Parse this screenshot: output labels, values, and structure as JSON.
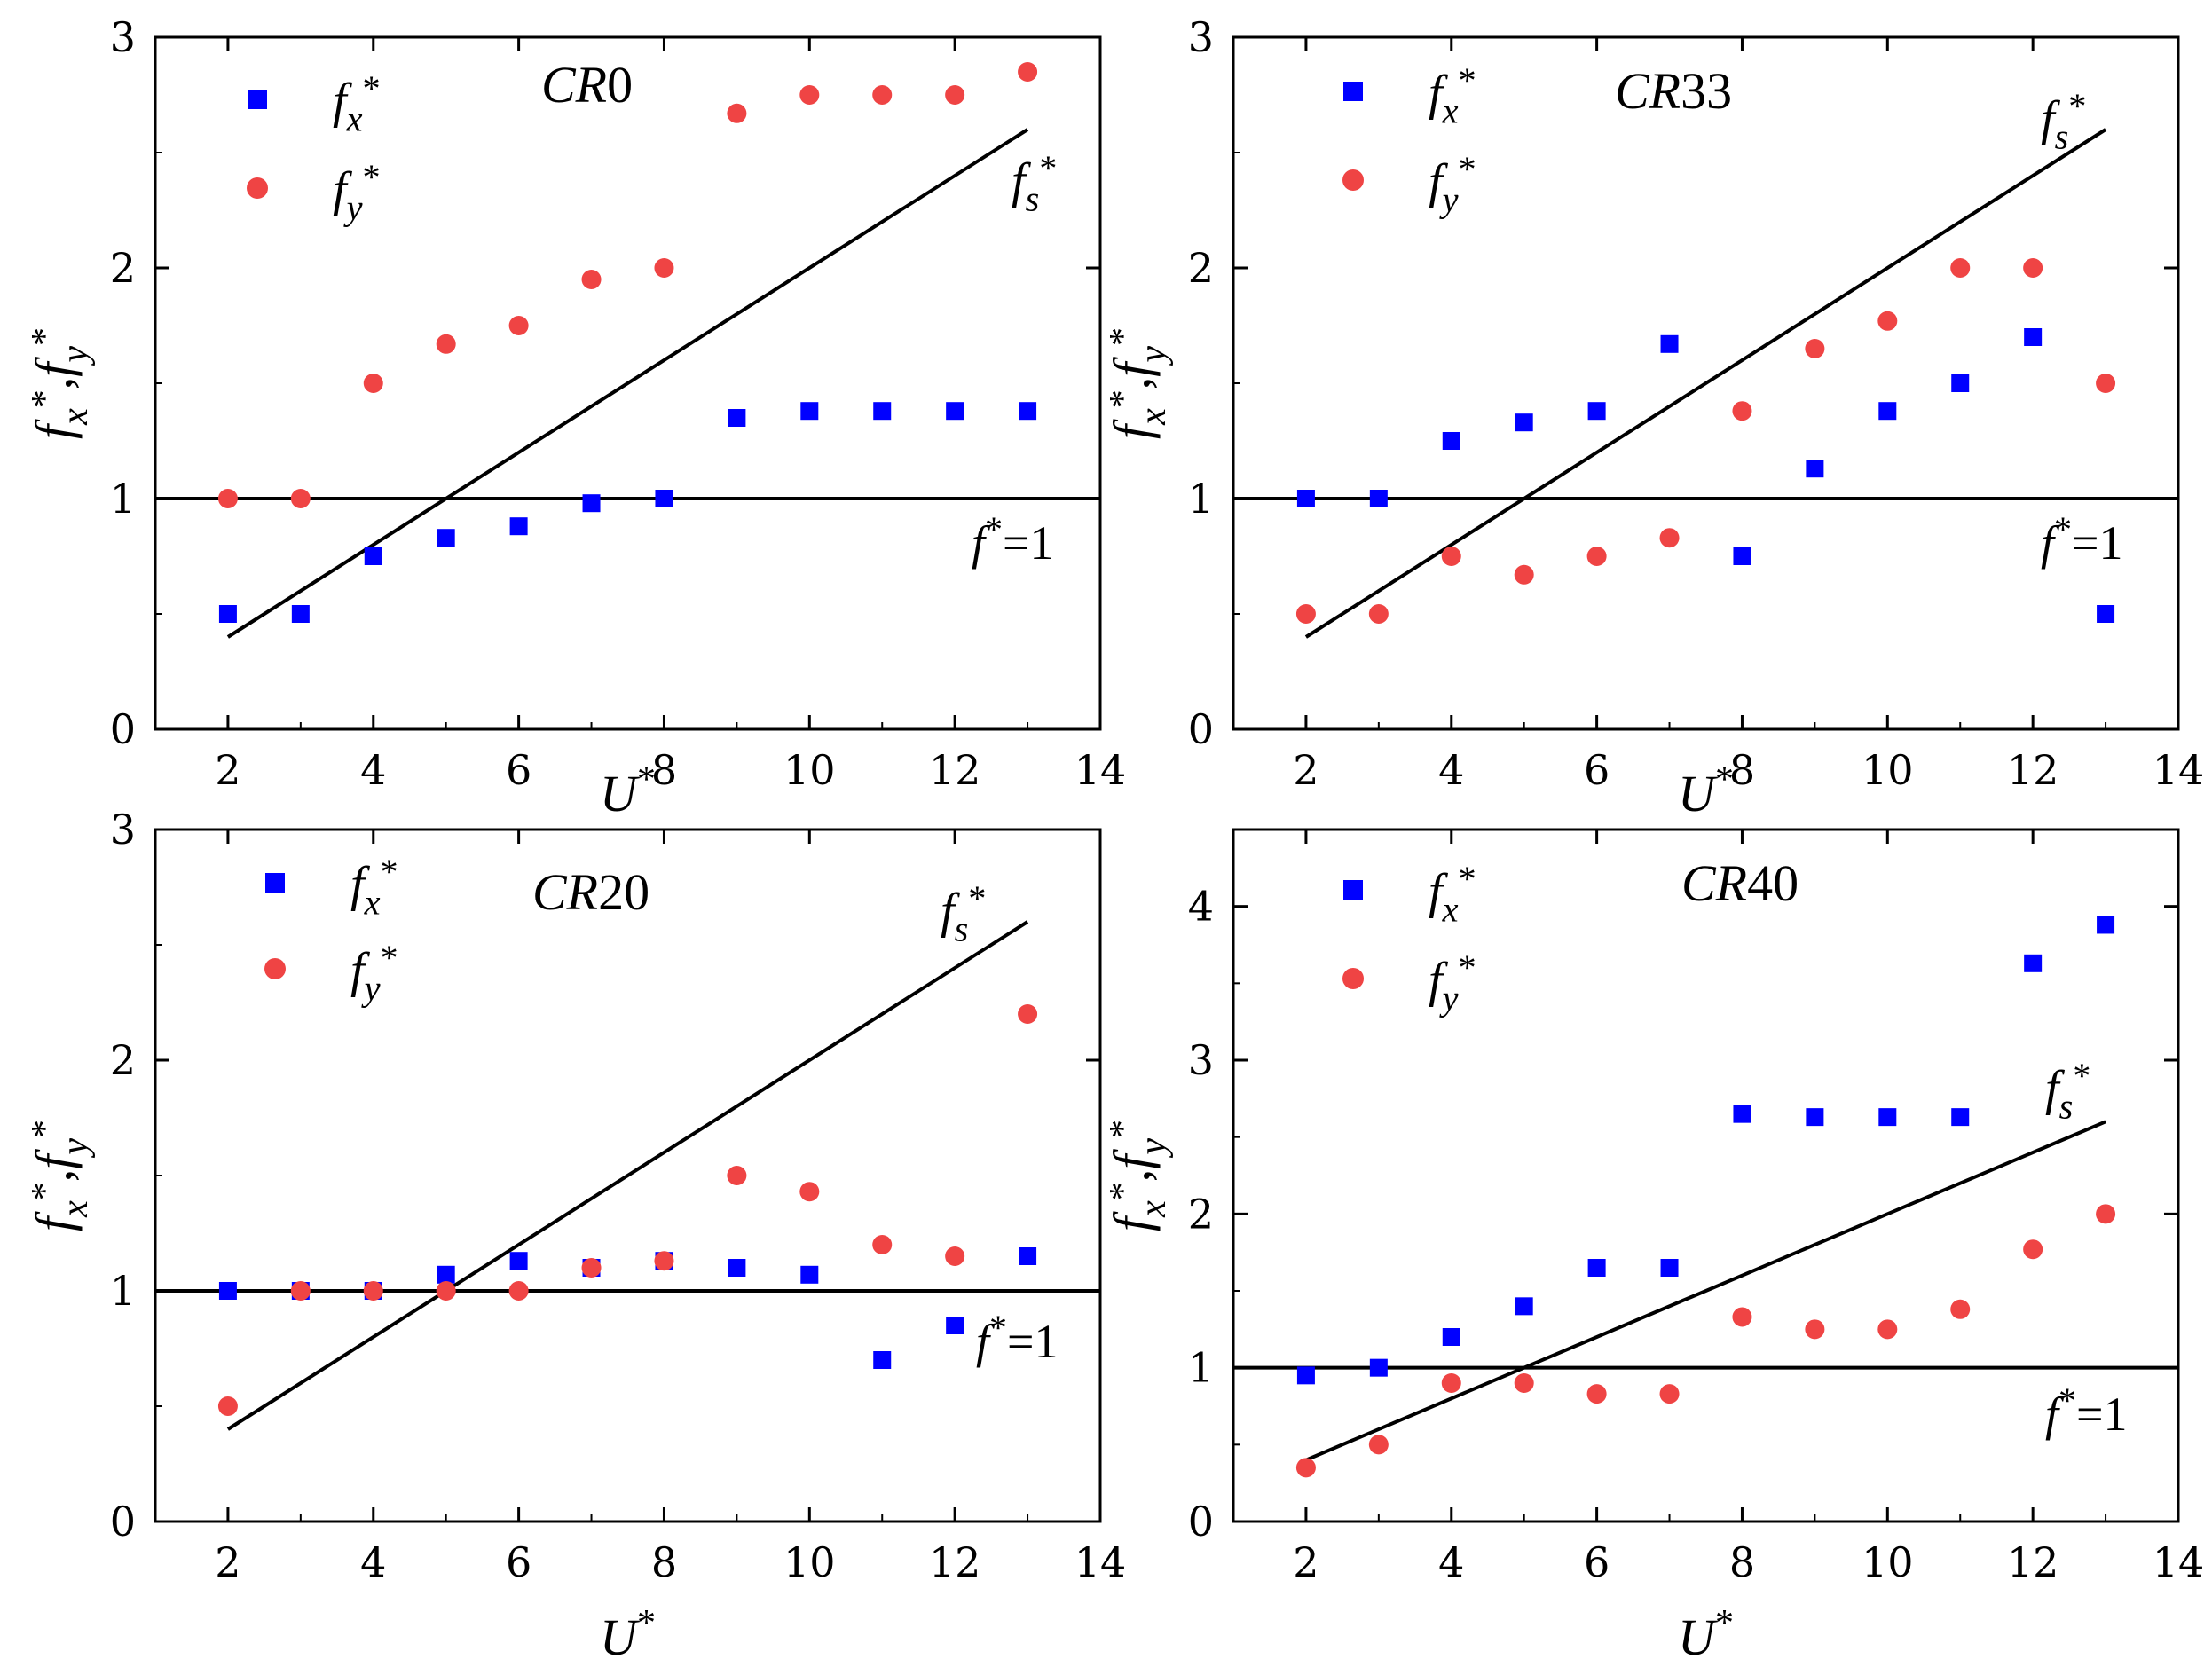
{
  "colors": {
    "fx": "#0000ff",
    "fy": "#ef4444",
    "line": "#000000",
    "axis": "#000000"
  },
  "chart_data": [
    {
      "type": "scatter",
      "title": "CR0",
      "xlabel": "U*",
      "ylabel": "fx*,fy*",
      "xlim": [
        1,
        14
      ],
      "ylim": [
        0,
        3
      ],
      "xticks": [
        2,
        4,
        6,
        8,
        10,
        12,
        14
      ],
      "yticks": [
        0,
        1,
        2,
        3
      ],
      "legend": [
        "fx*",
        "fy*"
      ],
      "series": [
        {
          "name": "fx*",
          "marker": "square",
          "x": [
            2,
            3,
            4,
            5,
            6,
            7,
            8,
            9,
            10,
            11,
            12,
            13
          ],
          "y": [
            0.5,
            0.5,
            0.75,
            0.83,
            0.88,
            0.98,
            1.0,
            1.35,
            1.38,
            1.38,
            1.38,
            1.38
          ]
        },
        {
          "name": "fy*",
          "marker": "circle",
          "x": [
            2,
            3,
            4,
            5,
            6,
            7,
            8,
            9,
            10,
            11,
            12,
            13
          ],
          "y": [
            1.0,
            1.0,
            1.5,
            1.67,
            1.75,
            1.95,
            2.0,
            2.67,
            2.75,
            2.75,
            2.75,
            2.85
          ]
        }
      ],
      "lines": [
        {
          "name": "fs*",
          "x": [
            2,
            13
          ],
          "y": [
            0.4,
            2.6
          ]
        },
        {
          "name": "f*=1",
          "x": [
            1,
            14
          ],
          "y": [
            1,
            1
          ]
        }
      ]
    },
    {
      "type": "scatter",
      "title": "CR33",
      "xlabel": "U*",
      "ylabel": "fx*,fy*",
      "xlim": [
        1,
        14
      ],
      "ylim": [
        0,
        3
      ],
      "xticks": [
        2,
        4,
        6,
        8,
        10,
        12,
        14
      ],
      "yticks": [
        0,
        1,
        2,
        3
      ],
      "legend": [
        "fx*",
        "fy*"
      ],
      "series": [
        {
          "name": "fx*",
          "marker": "square",
          "x": [
            2,
            3,
            4,
            5,
            6,
            7,
            8,
            9,
            10,
            11,
            12,
            13
          ],
          "y": [
            1.0,
            1.0,
            1.25,
            1.33,
            1.38,
            1.67,
            0.75,
            1.13,
            1.38,
            1.5,
            1.7,
            0.5
          ]
        },
        {
          "name": "fy*",
          "marker": "circle",
          "x": [
            2,
            3,
            4,
            5,
            6,
            7,
            8,
            9,
            10,
            11,
            12,
            13
          ],
          "y": [
            0.5,
            0.5,
            0.75,
            0.67,
            0.75,
            0.83,
            1.38,
            1.65,
            1.77,
            2.0,
            2.0,
            1.5
          ]
        }
      ],
      "lines": [
        {
          "name": "fs*",
          "x": [
            2,
            13
          ],
          "y": [
            0.4,
            2.6
          ]
        },
        {
          "name": "f*=1",
          "x": [
            1,
            14
          ],
          "y": [
            1,
            1
          ]
        }
      ]
    },
    {
      "type": "scatter",
      "title": "CR20",
      "xlabel": "U*",
      "ylabel": "fx*,fy*",
      "xlim": [
        1,
        14
      ],
      "ylim": [
        0,
        3
      ],
      "xticks": [
        2,
        4,
        6,
        8,
        10,
        12,
        14
      ],
      "yticks": [
        0,
        1,
        2,
        3
      ],
      "legend": [
        "fx*",
        "fy*"
      ],
      "series": [
        {
          "name": "fx*",
          "marker": "square",
          "x": [
            2,
            3,
            4,
            5,
            6,
            7,
            8,
            9,
            10,
            11,
            12,
            13
          ],
          "y": [
            1.0,
            1.0,
            1.0,
            1.07,
            1.13,
            1.1,
            1.13,
            1.1,
            1.07,
            0.7,
            0.85,
            1.15
          ]
        },
        {
          "name": "fy*",
          "marker": "circle",
          "x": [
            2,
            3,
            4,
            5,
            6,
            7,
            8,
            9,
            10,
            11,
            12,
            13
          ],
          "y": [
            0.5,
            1.0,
            1.0,
            1.0,
            1.0,
            1.1,
            1.13,
            1.5,
            1.43,
            1.2,
            1.15,
            2.2
          ]
        }
      ],
      "lines": [
        {
          "name": "fs*",
          "x": [
            2,
            13
          ],
          "y": [
            0.4,
            2.6
          ]
        },
        {
          "name": "f*=1",
          "x": [
            1,
            14
          ],
          "y": [
            1,
            1
          ]
        }
      ]
    },
    {
      "type": "scatter",
      "title": "CR40",
      "xlabel": "U*",
      "ylabel": "fx*,fy*",
      "xlim": [
        1,
        14
      ],
      "ylim": [
        0,
        4.5
      ],
      "xticks": [
        2,
        4,
        6,
        8,
        10,
        12,
        14
      ],
      "yticks": [
        0,
        1,
        2,
        3,
        4
      ],
      "legend": [
        "fx*",
        "fy*"
      ],
      "series": [
        {
          "name": "fx*",
          "marker": "square",
          "x": [
            2,
            3,
            4,
            5,
            6,
            7,
            8,
            9,
            10,
            11,
            12,
            13
          ],
          "y": [
            0.95,
            1.0,
            1.2,
            1.4,
            1.65,
            1.65,
            2.65,
            2.63,
            2.63,
            2.63,
            3.63,
            3.88
          ]
        },
        {
          "name": "fy*",
          "marker": "circle",
          "x": [
            2,
            3,
            4,
            5,
            6,
            7,
            8,
            9,
            10,
            11,
            12,
            13
          ],
          "y": [
            0.35,
            0.5,
            0.9,
            0.9,
            0.83,
            0.83,
            1.33,
            1.25,
            1.25,
            1.38,
            1.77,
            2.0
          ]
        }
      ],
      "lines": [
        {
          "name": "fs*",
          "x": [
            2,
            13
          ],
          "y": [
            0.4,
            2.6
          ]
        },
        {
          "name": "f*=1",
          "x": [
            1,
            14
          ],
          "y": [
            1,
            1
          ]
        }
      ]
    }
  ]
}
